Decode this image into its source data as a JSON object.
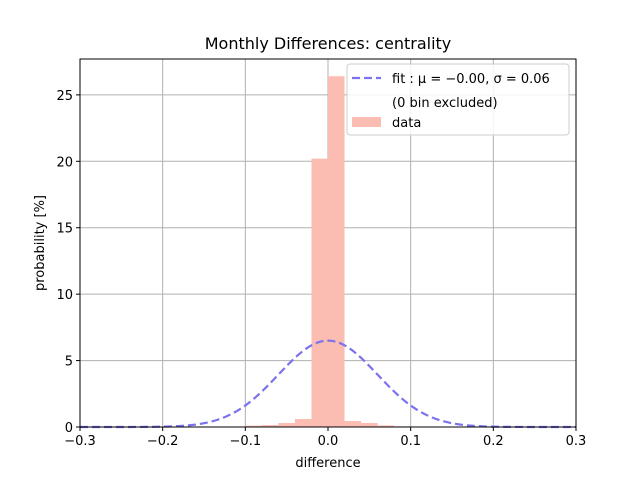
{
  "chart_data": {
    "type": "bar",
    "title": "Monthly Differences: centrality",
    "xlabel": "difference",
    "ylabel": "probability [%]",
    "xlim": [
      -0.3,
      0.3
    ],
    "ylim": [
      0,
      27.7
    ],
    "xticks": [
      "−0.3",
      "−0.2",
      "−0.1",
      "0.0",
      "0.1",
      "0.2",
      "0.3"
    ],
    "xtick_values": [
      -0.3,
      -0.2,
      -0.1,
      0.0,
      0.1,
      0.2,
      0.3
    ],
    "yticks": [
      "0",
      "5",
      "10",
      "15",
      "20",
      "25"
    ],
    "ytick_values": [
      0,
      5,
      10,
      15,
      20,
      25
    ],
    "grid": true,
    "legend_position": "top-right",
    "bin_width": 0.02,
    "bin_left_edges": [
      -0.1,
      -0.08,
      -0.06,
      -0.04,
      -0.02,
      0.0,
      0.02,
      0.04,
      0.06,
      0.08
    ],
    "values": [
      0.1,
      0.15,
      0.3,
      0.6,
      20.2,
      26.4,
      0.45,
      0.3,
      0.12,
      0.05
    ],
    "fit": {
      "mu": -0.0,
      "sigma": 0.06,
      "peak": 6.5
    },
    "legend": {
      "fit_label": "fit :  μ = −0.00,  σ = 0.06",
      "excluded_label": "(0 bin excluded)",
      "data_label": "data"
    },
    "colors": {
      "bars": "#fbbcb1",
      "fit": "#7a72ee",
      "grid": "#b0b0b0"
    }
  }
}
